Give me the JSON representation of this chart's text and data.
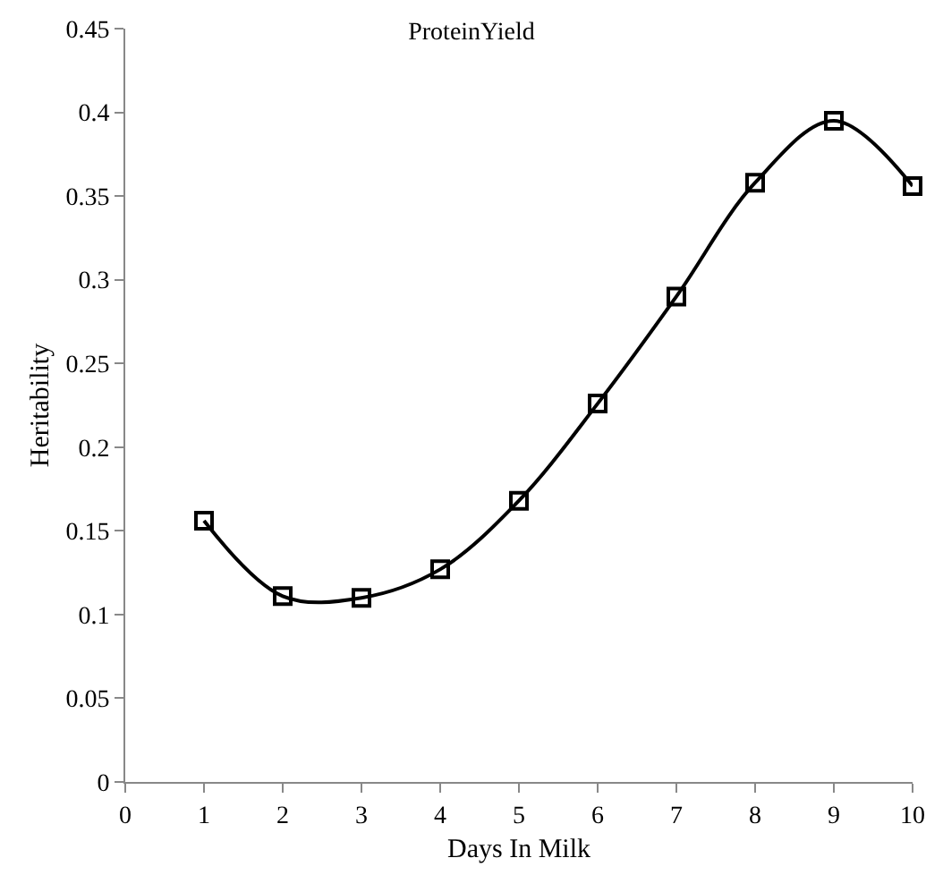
{
  "chart_data": {
    "type": "line",
    "title": "ProteinYield",
    "xlabel": "Days In Milk",
    "ylabel": "Heritability",
    "x": [
      1,
      2,
      3,
      4,
      5,
      6,
      7,
      8,
      9,
      10
    ],
    "series": [
      {
        "color": "#000000",
        "values": [
          0.156,
          0.111,
          0.11,
          0.127,
          0.168,
          0.226,
          0.29,
          0.358,
          0.395,
          0.356
        ]
      }
    ],
    "xlim": [
      0,
      10
    ],
    "xticks": [
      0,
      1,
      2,
      3,
      4,
      5,
      6,
      7,
      8,
      9,
      10
    ],
    "ylim": [
      0,
      0.45
    ],
    "yticks": [
      0,
      0.05,
      0.1,
      0.15,
      0.2,
      0.25,
      0.3,
      0.35,
      0.4,
      0.45
    ],
    "marker": "square",
    "line_style": "solid"
  }
}
